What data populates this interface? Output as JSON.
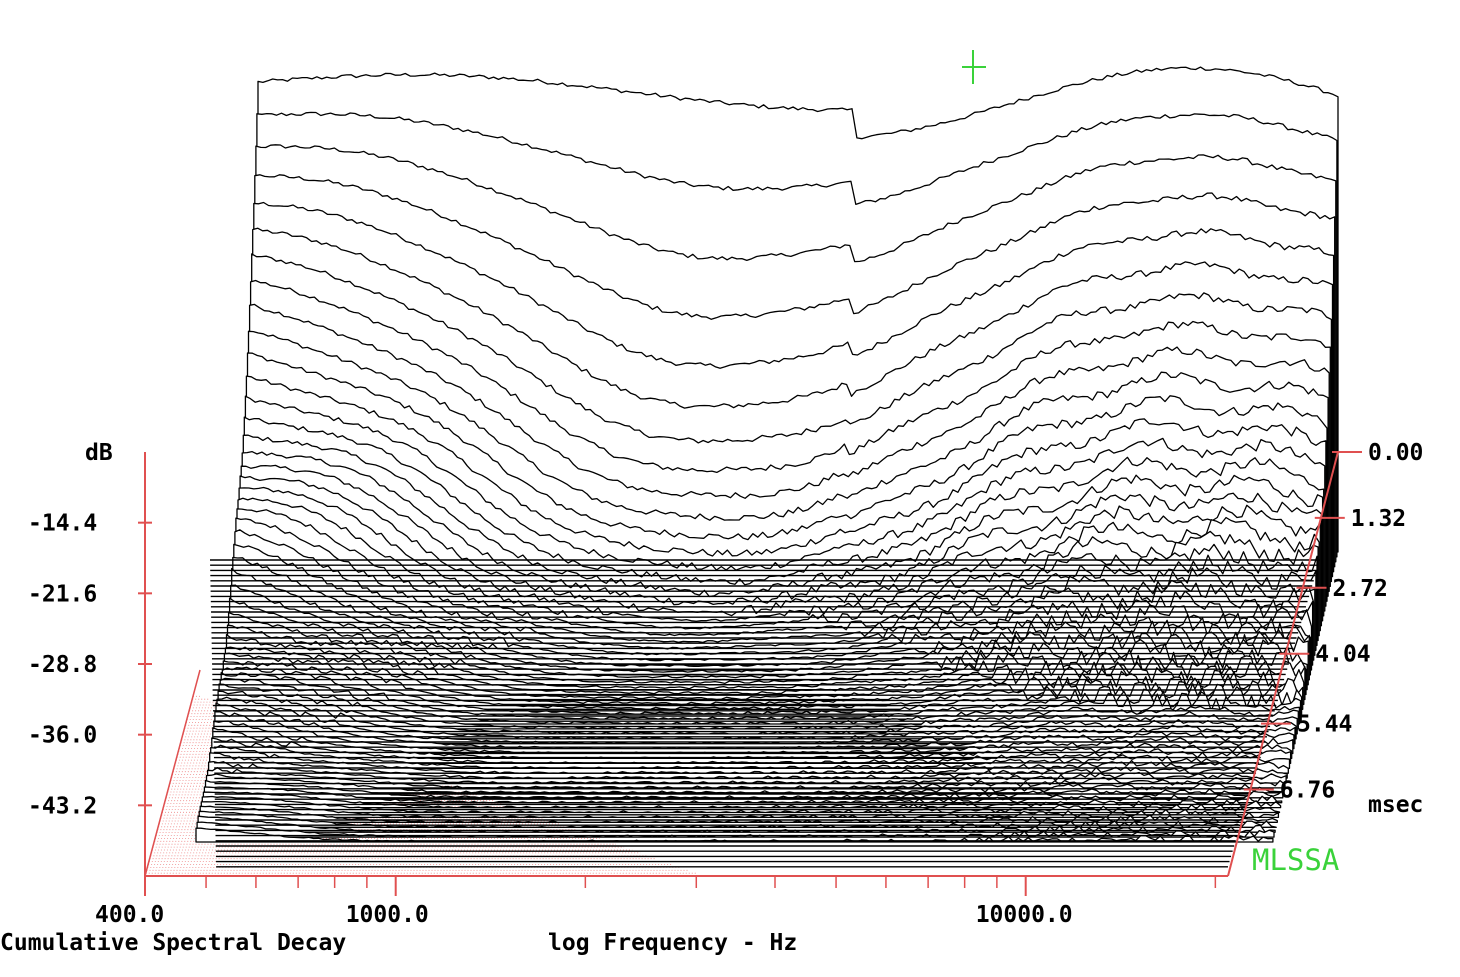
{
  "chart_data": {
    "type": "waterfall",
    "title": "Cumulative Spectral Decay",
    "xlabel": "log Frequency - Hz",
    "ylabel": "dB",
    "zlabel": "msec",
    "x_scale": "log",
    "xlim": [
      400,
      30000
    ],
    "x_ticks": [
      400,
      1000,
      10000
    ],
    "x_tick_labels": [
      "400.0",
      "1000.0",
      "10000.0"
    ],
    "ylim": [
      -50.4,
      -7.2
    ],
    "y_ticks": [
      -14.4,
      -21.6,
      -28.8,
      -36.0,
      -43.2
    ],
    "y_tick_labels": [
      "-14.4",
      "-21.6",
      "-28.8",
      "-36.0",
      "-43.2"
    ],
    "z_ticks": [
      0.0,
      1.32,
      2.72,
      4.04,
      5.44,
      6.76
    ],
    "z_tick_labels": [
      "0.00",
      "1.32",
      "2.72",
      "4.04",
      "5.44",
      "6.76"
    ],
    "z_range": [
      0,
      8.0
    ],
    "slices": 60,
    "watermark": "MLSSA",
    "colors": {
      "axis": "#e05050",
      "trace": "#000000",
      "cursor": "#3ad23a",
      "watermark": "#3ad23a"
    }
  }
}
